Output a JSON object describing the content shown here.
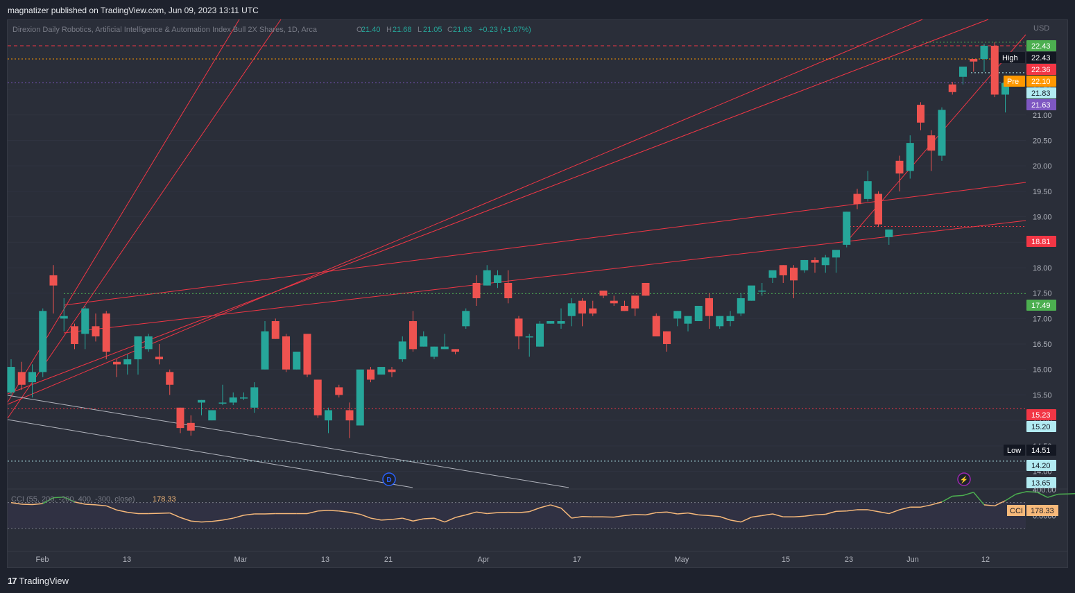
{
  "header": {
    "published": "magnatizer published on TradingView.com, Jun 09, 2023 13:11 UTC"
  },
  "legend": {
    "symbol": "Direxion Daily Robotics, Artificial Intelligence & Automation Index Bull 2X Shares, 1D, Arca",
    "o_label": "O",
    "o": "21.40",
    "h_label": "H",
    "h": "21.68",
    "l_label": "L",
    "l": "21.05",
    "c_label": "C",
    "c": "21.63",
    "change": "+0.23 (+1.07%)"
  },
  "currency": "USD",
  "price_axis": {
    "ticks": [
      "21.50",
      "21.00",
      "20.50",
      "20.00",
      "19.50",
      "19.00",
      "18.50",
      "18.00",
      "17.50",
      "17.00",
      "16.50",
      "16.00",
      "15.50",
      "15.00",
      "14.50",
      "14.00"
    ],
    "min": 13.68,
    "max": 22.85
  },
  "price_labels": [
    {
      "tag": "",
      "value": "22.43",
      "bg": "#4caf50",
      "fg": "#ffffff"
    },
    {
      "tag": "High",
      "value": "22.43",
      "bg": "#131722",
      "fg": "#ffffff"
    },
    {
      "tag": "",
      "value": "22.36",
      "bg": "#f23645",
      "fg": "#ffffff"
    },
    {
      "tag": "Pre",
      "value": "22.10",
      "bg": "#ff9800",
      "fg": "#ffffff"
    },
    {
      "tag": "",
      "value": "21.83",
      "bg": "#b2ebf2",
      "fg": "#131722"
    },
    {
      "tag": "",
      "value": "21.63",
      "bg": "#7e57c2",
      "fg": "#ffffff"
    },
    {
      "tag": "",
      "value": "18.81",
      "bg": "#f23645",
      "fg": "#ffffff"
    },
    {
      "tag": "",
      "value": "17.49",
      "bg": "#4caf50",
      "fg": "#ffffff"
    },
    {
      "tag": "",
      "value": "15.23",
      "bg": "#f23645",
      "fg": "#ffffff"
    },
    {
      "tag": "",
      "value": "15.20",
      "bg": "#b2ebf2",
      "fg": "#131722"
    },
    {
      "tag": "Low",
      "value": "14.51",
      "bg": "#131722",
      "fg": "#ffffff"
    },
    {
      "tag": "",
      "value": "14.20",
      "bg": "#b2ebf2",
      "fg": "#131722"
    },
    {
      "tag": "",
      "value": "13.65",
      "bg": "#b2ebf2",
      "fg": "#131722"
    }
  ],
  "time_axis": [
    "Feb",
    "13",
    "Mar",
    "13",
    "21",
    "Apr",
    "17",
    "May",
    "15",
    "23",
    "Jun",
    "12"
  ],
  "markers": {
    "dividend": "D",
    "earnings": "⚡"
  },
  "cci": {
    "label": "CCI (55, 200, -200, 400, -300, close)",
    "value": "178.33",
    "tag": "CCI",
    "axis_ticks": [
      "400.00",
      "0.0000"
    ],
    "ylim": [
      -500,
      400
    ],
    "values": [
      200,
      175,
      170,
      185,
      275,
      285,
      210,
      175,
      165,
      150,
      85,
      50,
      30,
      30,
      35,
      40,
      -30,
      -85,
      -100,
      -90,
      -70,
      -40,
      5,
      25,
      25,
      30,
      30,
      30,
      30,
      70,
      80,
      70,
      50,
      20,
      -40,
      -70,
      -60,
      -40,
      -85,
      -50,
      -40,
      -100,
      -30,
      10,
      55,
      30,
      45,
      50,
      45,
      60,
      120,
      165,
      115,
      -40,
      -15,
      -20,
      -20,
      -25,
      0,
      15,
      10,
      45,
      55,
      25,
      40,
      10,
      0,
      -15,
      -70,
      -100,
      -25,
      0,
      25,
      -20,
      -20,
      -10,
      10,
      20,
      65,
      70,
      90,
      90,
      60,
      30,
      90,
      130,
      130,
      165,
      210,
      300,
      310,
      360,
      165,
      150,
      230,
      330,
      370,
      360,
      280,
      330,
      335,
      340,
      335,
      320,
      190,
      178
    ]
  },
  "chart_data": {
    "type": "candlestick",
    "title": "Direxion Daily Robotics, Artificial Intelligence & Automation Index Bull 2X Shares, 1D, Arca",
    "ylabel": "USD",
    "ylim": [
      13.68,
      22.85
    ],
    "up_color": "#26a69a",
    "down_color": "#ef5350",
    "candles": [
      {
        "o": 15.55,
        "h": 16.2,
        "l": 15.5,
        "c": 16.05
      },
      {
        "o": 15.95,
        "h": 16.15,
        "l": 15.6,
        "c": 15.7
      },
      {
        "o": 15.75,
        "h": 16.1,
        "l": 15.45,
        "c": 15.95
      },
      {
        "o": 15.95,
        "h": 17.2,
        "l": 15.85,
        "c": 17.15
      },
      {
        "o": 17.85,
        "h": 18.05,
        "l": 17.1,
        "c": 17.65
      },
      {
        "o": 17.0,
        "h": 17.4,
        "l": 16.75,
        "c": 17.05
      },
      {
        "o": 16.85,
        "h": 16.9,
        "l": 16.4,
        "c": 16.5
      },
      {
        "o": 16.7,
        "h": 17.25,
        "l": 16.4,
        "c": 17.2
      },
      {
        "o": 16.85,
        "h": 17.1,
        "l": 16.55,
        "c": 16.65
      },
      {
        "o": 17.1,
        "h": 17.15,
        "l": 16.2,
        "c": 16.35
      },
      {
        "o": 16.15,
        "h": 16.2,
        "l": 15.85,
        "c": 16.1
      },
      {
        "o": 16.1,
        "h": 16.3,
        "l": 15.9,
        "c": 16.2
      },
      {
        "o": 16.2,
        "h": 16.65,
        "l": 15.9,
        "c": 16.65
      },
      {
        "o": 16.4,
        "h": 16.7,
        "l": 16.35,
        "c": 16.65
      },
      {
        "o": 16.25,
        "h": 16.5,
        "l": 16.1,
        "c": 16.2
      },
      {
        "o": 15.95,
        "h": 16.0,
        "l": 15.5,
        "c": 15.7
      },
      {
        "o": 15.25,
        "h": 15.25,
        "l": 14.75,
        "c": 14.85
      },
      {
        "o": 14.95,
        "h": 15.1,
        "l": 14.7,
        "c": 14.8
      },
      {
        "o": 15.35,
        "h": 15.4,
        "l": 15.1,
        "c": 15.4
      },
      {
        "o": 15.0,
        "h": 15.2,
        "l": 15.0,
        "c": 15.2
      },
      {
        "o": 15.35,
        "h": 15.7,
        "l": 15.3,
        "c": 15.35
      },
      {
        "o": 15.35,
        "h": 15.55,
        "l": 15.3,
        "c": 15.45
      },
      {
        "o": 15.45,
        "h": 15.55,
        "l": 15.4,
        "c": 15.45
      },
      {
        "o": 15.25,
        "h": 15.75,
        "l": 15.15,
        "c": 15.65
      },
      {
        "o": 16.0,
        "h": 16.95,
        "l": 16.0,
        "c": 16.75
      },
      {
        "o": 16.95,
        "h": 17.0,
        "l": 16.6,
        "c": 16.6
      },
      {
        "o": 16.65,
        "h": 16.7,
        "l": 15.95,
        "c": 16.0
      },
      {
        "o": 16.0,
        "h": 16.35,
        "l": 16.0,
        "c": 16.35
      },
      {
        "o": 16.7,
        "h": 16.7,
        "l": 15.85,
        "c": 15.9
      },
      {
        "o": 15.8,
        "h": 15.8,
        "l": 15.05,
        "c": 15.1
      },
      {
        "o": 15.0,
        "h": 15.25,
        "l": 14.75,
        "c": 15.2
      },
      {
        "o": 15.65,
        "h": 15.7,
        "l": 15.45,
        "c": 15.5
      },
      {
        "o": 15.2,
        "h": 15.35,
        "l": 14.65,
        "c": 15.0
      },
      {
        "o": 14.9,
        "h": 15.95,
        "l": 14.9,
        "c": 16.0
      },
      {
        "o": 16.0,
        "h": 16.05,
        "l": 15.75,
        "c": 15.8
      },
      {
        "o": 15.9,
        "h": 16.0,
        "l": 15.9,
        "c": 16.05
      },
      {
        "o": 16.0,
        "h": 16.05,
        "l": 15.85,
        "c": 15.95
      },
      {
        "o": 16.2,
        "h": 16.65,
        "l": 16.15,
        "c": 16.55
      },
      {
        "o": 16.95,
        "h": 17.15,
        "l": 16.35,
        "c": 16.4
      },
      {
        "o": 16.45,
        "h": 16.75,
        "l": 16.45,
        "c": 16.65
      },
      {
        "o": 16.25,
        "h": 16.45,
        "l": 16.2,
        "c": 16.45
      },
      {
        "o": 16.4,
        "h": 16.7,
        "l": 16.4,
        "c": 16.45
      },
      {
        "o": 16.4,
        "h": 16.4,
        "l": 16.3,
        "c": 16.35
      },
      {
        "o": 16.85,
        "h": 17.2,
        "l": 16.8,
        "c": 17.15
      },
      {
        "o": 17.7,
        "h": 17.85,
        "l": 17.25,
        "c": 17.4
      },
      {
        "o": 17.65,
        "h": 18.05,
        "l": 17.65,
        "c": 17.95
      },
      {
        "o": 17.7,
        "h": 17.95,
        "l": 17.6,
        "c": 17.85
      },
      {
        "o": 17.7,
        "h": 17.95,
        "l": 17.3,
        "c": 17.4
      },
      {
        "o": 17.0,
        "h": 17.05,
        "l": 16.4,
        "c": 16.65
      },
      {
        "o": 16.65,
        "h": 16.7,
        "l": 16.25,
        "c": 16.65
      },
      {
        "o": 16.45,
        "h": 16.95,
        "l": 16.45,
        "c": 16.9
      },
      {
        "o": 16.9,
        "h": 16.95,
        "l": 16.9,
        "c": 16.95
      },
      {
        "o": 16.9,
        "h": 17.2,
        "l": 16.8,
        "c": 16.95
      },
      {
        "o": 17.05,
        "h": 17.4,
        "l": 16.85,
        "c": 17.3
      },
      {
        "o": 17.35,
        "h": 17.4,
        "l": 16.85,
        "c": 17.1
      },
      {
        "o": 17.2,
        "h": 17.35,
        "l": 17.05,
        "c": 17.1
      },
      {
        "o": 17.55,
        "h": 17.55,
        "l": 17.4,
        "c": 17.45
      },
      {
        "o": 17.35,
        "h": 17.45,
        "l": 17.25,
        "c": 17.3
      },
      {
        "o": 17.25,
        "h": 17.35,
        "l": 17.15,
        "c": 17.15
      },
      {
        "o": 17.45,
        "h": 17.45,
        "l": 17.05,
        "c": 17.2
      },
      {
        "o": 17.7,
        "h": 17.7,
        "l": 17.45,
        "c": 17.45
      },
      {
        "o": 17.05,
        "h": 17.1,
        "l": 16.65,
        "c": 16.65
      },
      {
        "o": 16.75,
        "h": 16.75,
        "l": 16.35,
        "c": 16.5
      },
      {
        "o": 17.0,
        "h": 17.15,
        "l": 16.85,
        "c": 17.15
      },
      {
        "o": 16.9,
        "h": 17.0,
        "l": 16.75,
        "c": 17.05
      },
      {
        "o": 16.95,
        "h": 17.25,
        "l": 16.95,
        "c": 17.25
      },
      {
        "o": 17.4,
        "h": 17.5,
        "l": 16.8,
        "c": 17.05
      },
      {
        "o": 16.85,
        "h": 17.05,
        "l": 16.8,
        "c": 17.05
      },
      {
        "o": 16.95,
        "h": 17.15,
        "l": 16.85,
        "c": 17.05
      },
      {
        "o": 17.1,
        "h": 17.5,
        "l": 17.05,
        "c": 17.4
      },
      {
        "o": 17.35,
        "h": 17.6,
        "l": 17.35,
        "c": 17.65
      },
      {
        "o": 17.55,
        "h": 17.7,
        "l": 17.45,
        "c": 17.55
      },
      {
        "o": 17.8,
        "h": 17.9,
        "l": 17.7,
        "c": 17.95
      },
      {
        "o": 18.05,
        "h": 18.05,
        "l": 17.7,
        "c": 17.85
      },
      {
        "o": 18.0,
        "h": 18.05,
        "l": 17.4,
        "c": 17.75
      },
      {
        "o": 17.95,
        "h": 18.15,
        "l": 17.9,
        "c": 18.15
      },
      {
        "o": 18.15,
        "h": 18.2,
        "l": 17.9,
        "c": 18.1
      },
      {
        "o": 18.05,
        "h": 18.25,
        "l": 17.9,
        "c": 18.2
      },
      {
        "o": 18.2,
        "h": 18.3,
        "l": 17.9,
        "c": 18.35
      },
      {
        "o": 18.45,
        "h": 19.1,
        "l": 18.4,
        "c": 19.1
      },
      {
        "o": 19.45,
        "h": 19.55,
        "l": 19.15,
        "c": 19.25
      },
      {
        "o": 19.35,
        "h": 19.9,
        "l": 19.3,
        "c": 19.7
      },
      {
        "o": 19.45,
        "h": 19.5,
        "l": 18.8,
        "c": 18.85
      },
      {
        "o": 18.6,
        "h": 18.7,
        "l": 18.45,
        "c": 18.75
      },
      {
        "o": 20.1,
        "h": 20.2,
        "l": 19.5,
        "c": 19.85
      },
      {
        "o": 19.9,
        "h": 20.6,
        "l": 19.75,
        "c": 20.45
      },
      {
        "o": 21.2,
        "h": 21.25,
        "l": 20.7,
        "c": 20.85
      },
      {
        "o": 20.6,
        "h": 20.7,
        "l": 19.9,
        "c": 20.3
      },
      {
        "o": 20.2,
        "h": 21.15,
        "l": 20.1,
        "c": 21.1
      },
      {
        "o": 21.6,
        "h": 21.65,
        "l": 21.4,
        "c": 21.45
      },
      {
        "o": 21.75,
        "h": 21.95,
        "l": 21.6,
        "c": 21.95
      },
      {
        "o": 22.1,
        "h": 22.1,
        "l": 21.85,
        "c": 22.05
      },
      {
        "o": 22.1,
        "h": 22.4,
        "l": 21.85,
        "c": 22.36
      },
      {
        "o": 22.36,
        "h": 22.43,
        "l": 21.35,
        "c": 21.4
      },
      {
        "o": 21.4,
        "h": 21.68,
        "l": 21.05,
        "c": 21.63
      }
    ],
    "horizontal_levels": [
      22.43,
      22.36,
      22.1,
      21.83,
      21.63,
      18.81,
      17.49,
      15.23,
      14.2
    ]
  }
}
